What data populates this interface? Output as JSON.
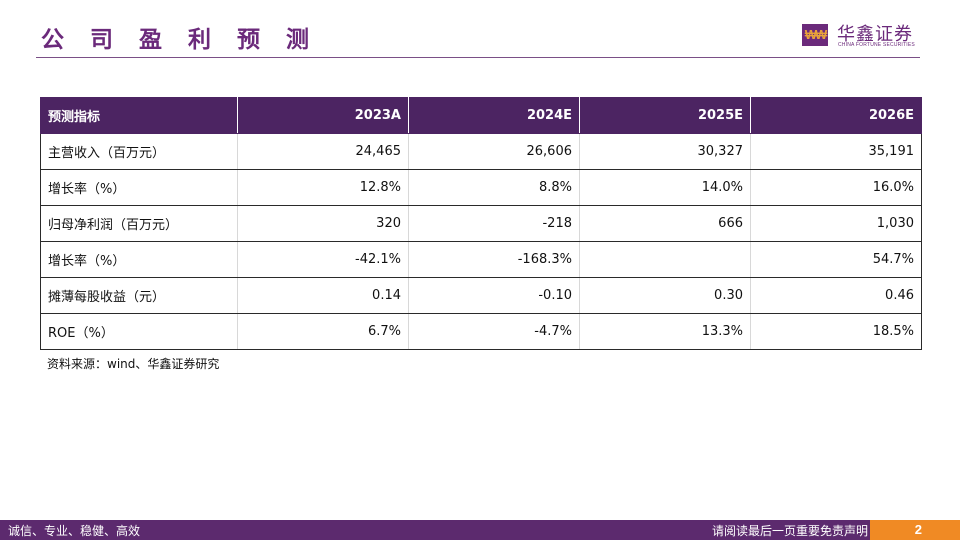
{
  "page_title": "公 司 盈 利 预 测",
  "logo": {
    "mark": "₩₩",
    "name_cn": "华鑫证券",
    "name_en": "CHINA FORTUNE SECURITIES",
    "mark_color": "#6b2a7b"
  },
  "table": {
    "headers": [
      "预测指标",
      "2023A",
      "2024E",
      "2025E",
      "2026E"
    ],
    "rows": [
      [
        "主营收入（百万元）",
        "24,465",
        "26,606",
        "30,327",
        "35,191"
      ],
      [
        "增长率（%）",
        "12.8%",
        "8.8%",
        "14.0%",
        "16.0%"
      ],
      [
        "归母净利润（百万元）",
        "320",
        "-218",
        "666",
        "1,030"
      ],
      [
        "增长率（%）",
        "-42.1%",
        "-168.3%",
        "",
        "54.7%"
      ],
      [
        "摊薄每股收益（元）",
        "0.14",
        "-0.10",
        "0.30",
        "0.46"
      ],
      [
        "ROE（%）",
        "6.7%",
        "-4.7%",
        "13.3%",
        "18.5%"
      ]
    ]
  },
  "source_note": "资料来源：wind、华鑫证券研究",
  "footer": {
    "slogan": "诚信、专业、稳健、高效",
    "disclaimer": "请阅读最后一页重要免责声明",
    "page_number": "2"
  },
  "colors": {
    "brand_purple": "#5c2a6e",
    "header_purple": "#4c2462",
    "accent_orange": "#f08a24"
  }
}
